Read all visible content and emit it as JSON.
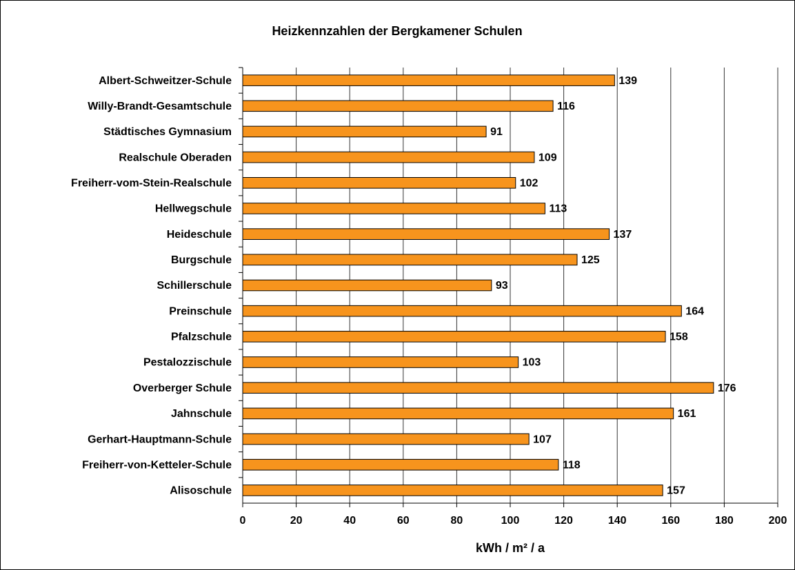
{
  "chart_data": {
    "type": "barh",
    "title": "Heizkennzahlen der Bergkamener Schulen",
    "x_label": "kWh / m² / a",
    "categories": [
      "Albert-Schweitzer-Schule",
      "Willy-Brandt-Gesamtschule",
      "Städtisches Gymnasium",
      "Realschule Oberaden",
      "Freiherr-vom-Stein-Realschule",
      "Hellwegschule",
      "Heideschule",
      "Burgschule",
      "Schillerschule",
      "Preinschule",
      "Pfalzschule",
      "Pestalozzischule",
      "Overberger Schule",
      "Jahnschule",
      "Gerhart-Hauptmann-Schule",
      "Freiherr-von-Ketteler-Schule",
      "Alisoschule"
    ],
    "values": [
      139,
      116,
      91,
      109,
      102,
      113,
      137,
      125,
      93,
      164,
      158,
      103,
      176,
      161,
      107,
      118,
      157
    ],
    "color": "#f7941d",
    "xlim": [
      0,
      200
    ],
    "xticks": [
      0,
      20,
      40,
      60,
      80,
      100,
      120,
      140,
      160,
      180,
      200
    ],
    "grid": true
  }
}
